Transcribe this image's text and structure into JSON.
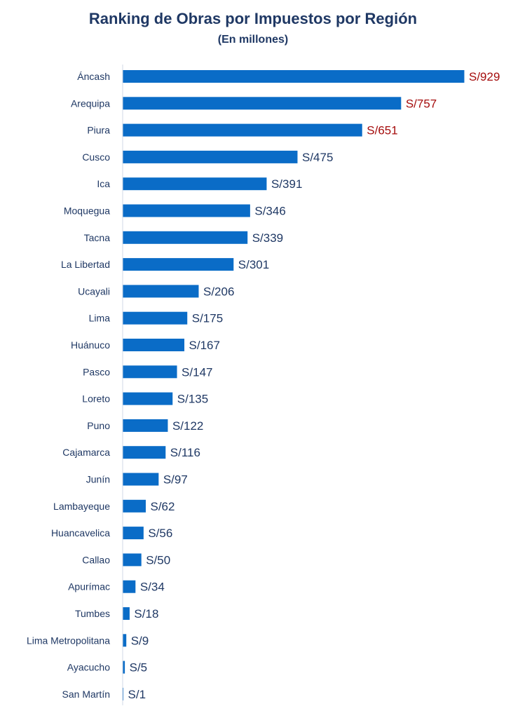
{
  "chart_data": {
    "type": "bar",
    "orientation": "horizontal",
    "title": "Ranking de Obras por Impuestos por Región",
    "subtitle": "(En millones)",
    "categories": [
      "Áncash",
      "Arequipa",
      "Piura",
      "Cusco",
      "Ica",
      "Moquegua",
      "Tacna",
      "La Libertad",
      "Ucayali",
      "Lima",
      "Huánuco",
      "Pasco",
      "Loreto",
      "Puno",
      "Cajamarca",
      "Junín",
      "Lambayeque",
      "Huancavelica",
      "Callao",
      "Apurímac",
      "Tumbes",
      "Lima Metropolitana",
      "Ayacucho",
      "San Martín"
    ],
    "values": [
      929,
      757,
      651,
      475,
      391,
      346,
      339,
      301,
      206,
      175,
      167,
      147,
      135,
      122,
      116,
      97,
      62,
      56,
      50,
      34,
      18,
      9,
      5,
      1
    ],
    "value_labels": [
      "S/929",
      "S/757",
      "S/651",
      "S/475",
      "S/391",
      "S/346",
      "S/339",
      "S/301",
      "S/206",
      "S/175",
      "S/167",
      "S/147",
      "S/135",
      "S/122",
      "S/116",
      "S/97",
      "S/62",
      "S/56",
      "S/50",
      "S/34",
      "S/18",
      "S/9",
      "S/5",
      "S/1"
    ],
    "xlim": [
      0,
      929
    ],
    "grid": false,
    "legend": false,
    "colors": {
      "bar": "#0a6cc7",
      "label_default": "#1f3864",
      "label_highlight": "#a50d0d",
      "axis": "#d0d8e4"
    },
    "highlighted_count": 3
  }
}
